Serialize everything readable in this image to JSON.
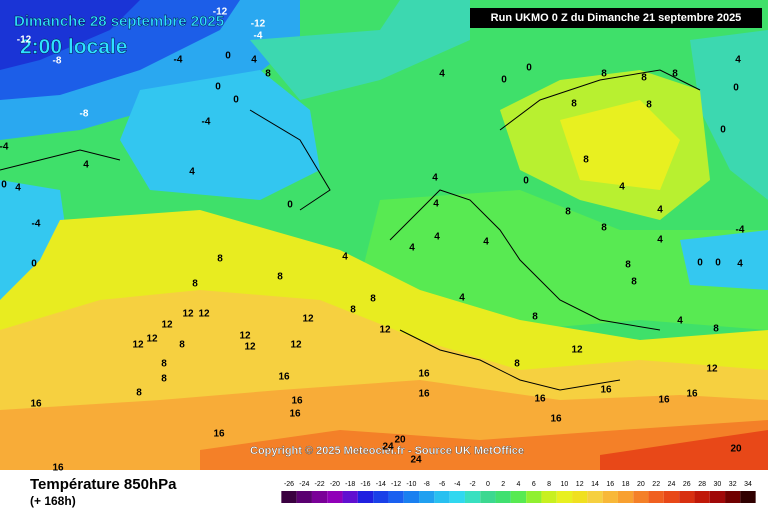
{
  "header": {
    "title": "Dimanche 28 septembre 2025",
    "time": "2:00 locale",
    "run": "Run UKMO 0 Z du Dimanche 21 septembre 2025"
  },
  "copyright": "Copyright © 2025 Meteociel.fr - Source UK MetOffice",
  "footer": {
    "variable": "Température 850hPa",
    "lead": "(+ 168h)"
  },
  "legend": {
    "ticks": [
      -26,
      -24,
      -22,
      -20,
      -18,
      -16,
      -14,
      -12,
      -10,
      -8,
      -6,
      -4,
      -2,
      0,
      2,
      4,
      6,
      8,
      10,
      12,
      14,
      16,
      18,
      20,
      22,
      24,
      26,
      28,
      30,
      32,
      34
    ],
    "colors": [
      "#3a0040",
      "#5a0070",
      "#7a0098",
      "#9000b8",
      "#6010d0",
      "#2020e0",
      "#1a40e8",
      "#1a60f0",
      "#1a80f0",
      "#20a0f0",
      "#28c0f0",
      "#30d8f0",
      "#38e0c0",
      "#3cd890",
      "#40e070",
      "#58ea52",
      "#90f030",
      "#c8f020",
      "#e8f020",
      "#f0e020",
      "#f6d040",
      "#f8b838",
      "#f8a030",
      "#f48028",
      "#f06020",
      "#e84818",
      "#d83010",
      "#c01808",
      "#a00808",
      "#700000",
      "#300000"
    ]
  },
  "contour_labels": [
    -12,
    -12,
    -4,
    -12,
    -8,
    -4,
    0,
    4,
    8,
    0,
    0,
    -8,
    -4,
    -4,
    4,
    4,
    0,
    4,
    0,
    -4,
    0,
    4,
    0,
    0,
    8,
    8,
    8,
    4,
    0,
    0,
    8,
    8,
    4,
    4,
    4,
    4,
    4,
    4,
    8,
    8,
    8,
    8,
    4,
    8,
    12,
    12,
    12,
    12,
    12,
    12,
    12,
    12,
    12,
    8,
    12,
    8,
    12,
    8,
    8,
    8,
    16,
    8,
    16,
    16,
    16,
    16,
    16,
    16,
    16,
    16,
    20,
    16,
    16,
    16,
    12,
    8,
    4,
    4,
    -4,
    0,
    0,
    4,
    8,
    8,
    8,
    8,
    0,
    8,
    4,
    4,
    24,
    24,
    20,
    16
  ]
}
